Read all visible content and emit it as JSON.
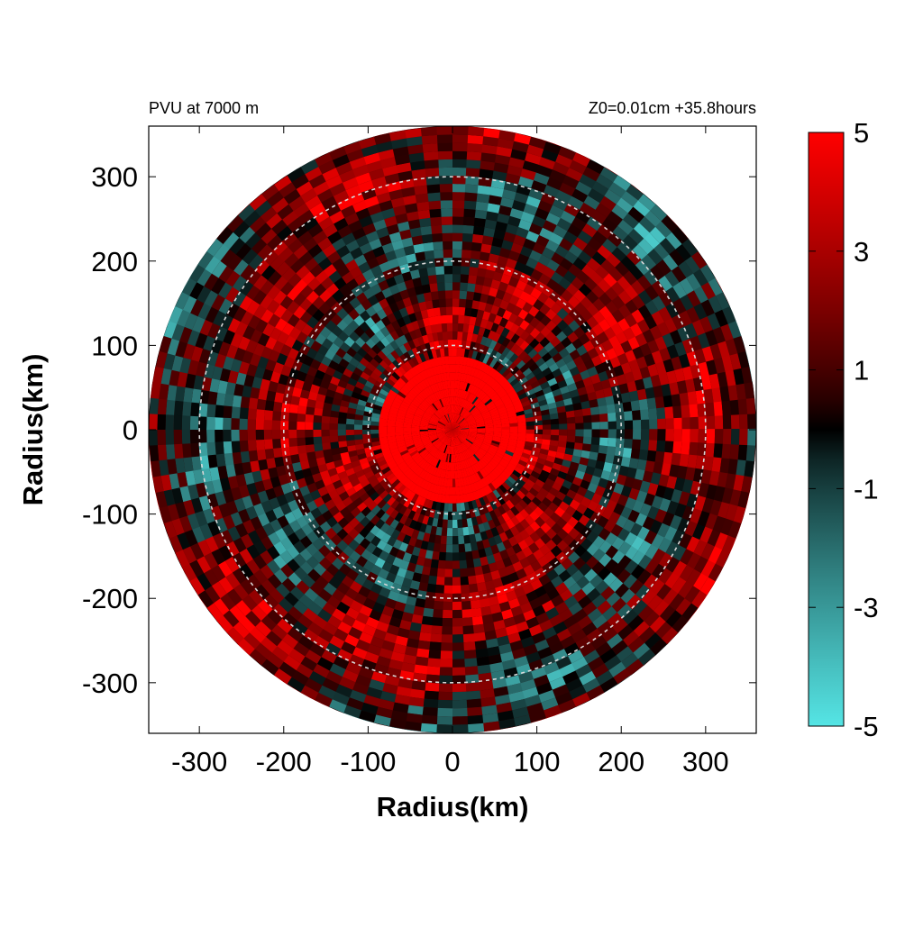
{
  "chart_data": {
    "type": "heatmap",
    "subtype": "polar-field",
    "title_left": "PVU at  7000 m",
    "title_right": "Z0=0.01cm  +35.8hours",
    "xlabel": "Radius(km)",
    "ylabel": "Radius(km)",
    "xlim": [
      -360,
      360
    ],
    "ylim": [
      -360,
      360
    ],
    "x_ticks": [
      -300,
      -200,
      -100,
      0,
      100,
      200,
      300
    ],
    "y_ticks": [
      300,
      200,
      100,
      0,
      -100,
      -200,
      -300
    ],
    "domain_radius_km": 360,
    "reference_circles_km": [
      100,
      200,
      300
    ],
    "reference_circle_style": "dashed-white",
    "colorbar": {
      "min": -5,
      "max": 5,
      "tick_labels": [
        5,
        3,
        1,
        -1,
        -3,
        -5
      ],
      "colors": {
        "max": "#ff0000",
        "mid": "#000000",
        "min": "#55e5e5"
      }
    },
    "features": {
      "core_value_pvu": 5,
      "core_radius_km": 90,
      "pattern": "spiral bands of positive (red) and negative (cyan) PV around a saturated core"
    }
  }
}
